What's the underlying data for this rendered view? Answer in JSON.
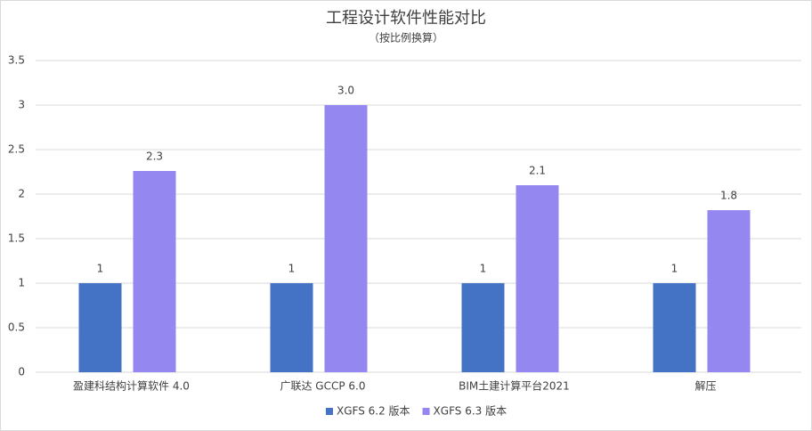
{
  "chart_data": {
    "type": "bar",
    "title": "工程设计软件性能对比",
    "subtitle": "（按比例换算）",
    "categories": [
      "盈建科结构计算软件 4.0",
      "广联达 GCCP 6.0",
      "BIM土建计算平台2021",
      "解压"
    ],
    "series": [
      {
        "name": "XGFS 6.2 版本",
        "color": "#4472c4",
        "values": [
          1,
          1,
          1,
          1
        ]
      },
      {
        "name": "XGFS 6.3 版本",
        "color": "#9487f0",
        "values": [
          2.26,
          3,
          2.1,
          1.82
        ],
        "value_labels": [
          "2.3",
          "3.0",
          "2.1",
          "1.8"
        ]
      }
    ],
    "ylim": [
      0,
      3.5
    ],
    "yticks": [
      0,
      0.5,
      1,
      1.5,
      2,
      2.5,
      3,
      3.5
    ],
    "grid": true,
    "legend": "bottom"
  }
}
